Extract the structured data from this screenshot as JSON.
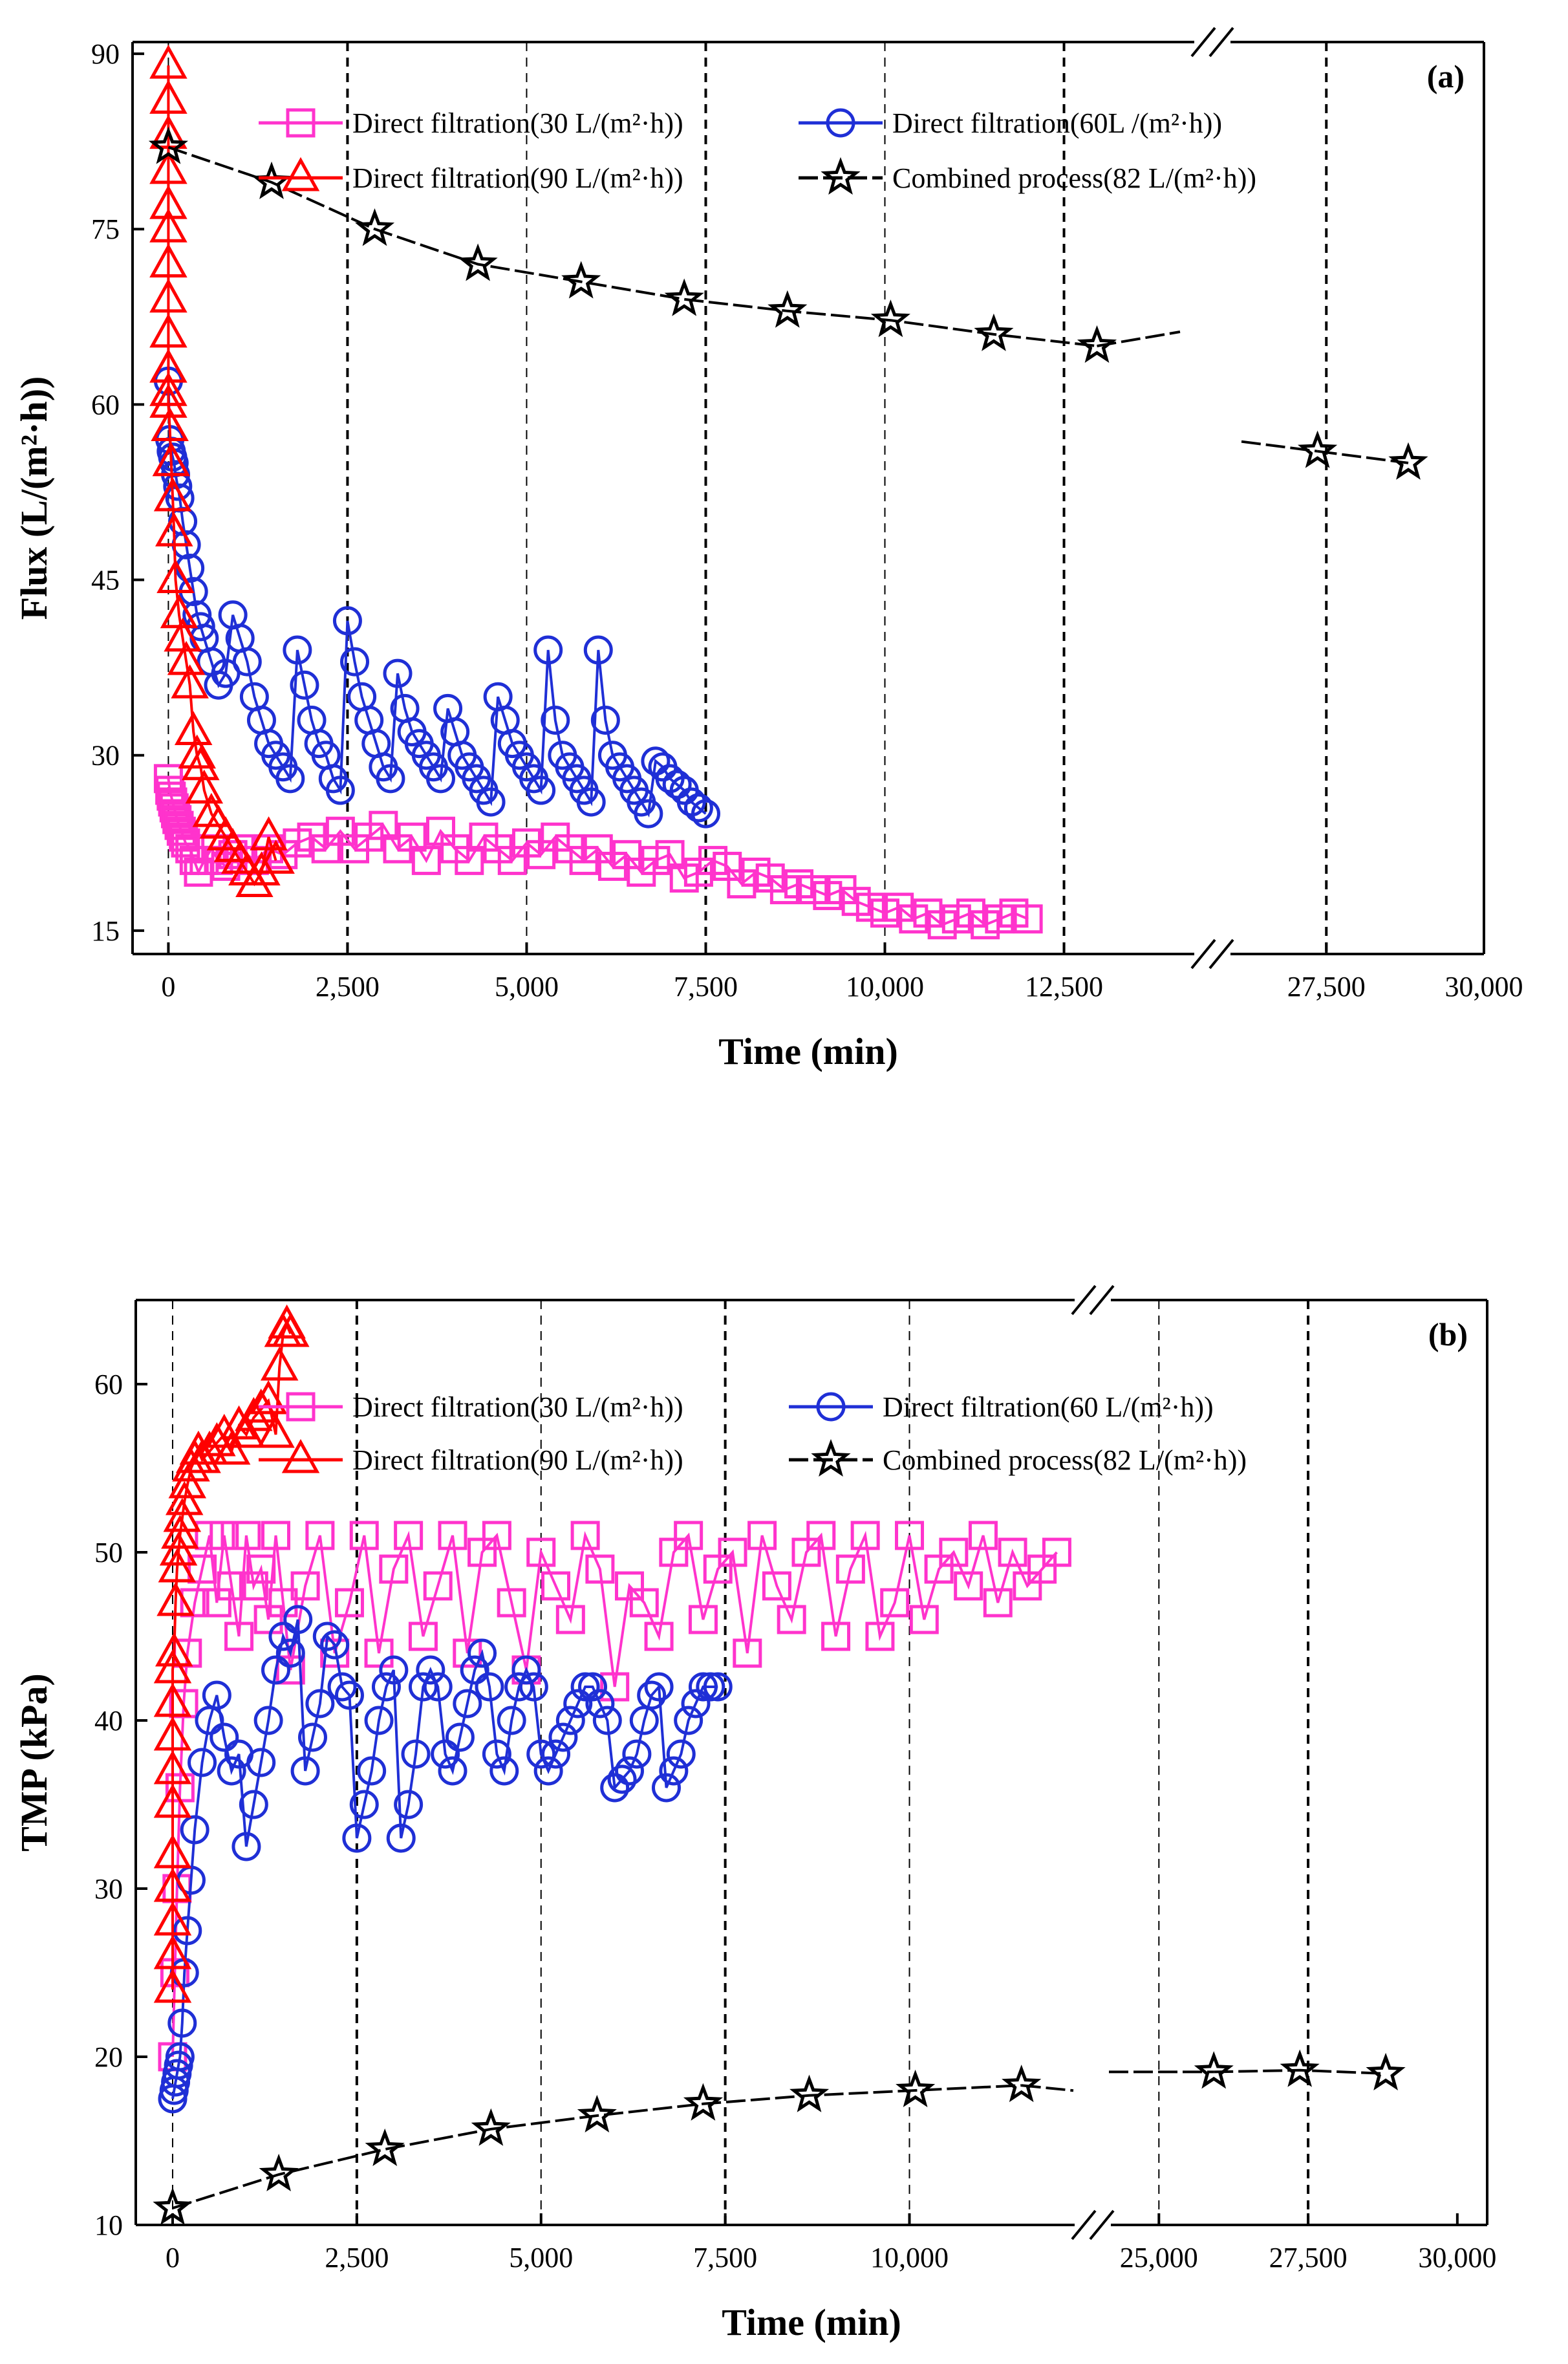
{
  "chart_data": [
    {
      "type": "scatter",
      "panel_label": "(a)",
      "xlabel": "Time (min)",
      "ylabel": "Flux (L/(m²·h))",
      "ylim": [
        13,
        91
      ],
      "yticks": [
        "15",
        "30",
        "45",
        "60",
        "75",
        "90"
      ],
      "ytick_values": [
        15,
        30,
        45,
        60,
        75,
        90
      ],
      "x_segments": [
        {
          "range": [
            -500,
            14300
          ],
          "ticks": [
            "0",
            "2,500",
            "5,000",
            "7,500",
            "10,000",
            "12,500"
          ],
          "tick_values": [
            0,
            2500,
            5000,
            7500,
            10000,
            12500
          ]
        },
        {
          "range": [
            26000,
            30000
          ],
          "ticks": [
            "27,500",
            "30,000"
          ],
          "tick_values": [
            27500,
            30000
          ]
        }
      ],
      "vlines": [
        0,
        2500,
        5000,
        7500,
        10000,
        12500,
        27500
      ],
      "legend": [
        {
          "name": "Direct filtration(30 L/(m²·h))",
          "marker": "square",
          "color": "#ff33cc"
        },
        {
          "name": "Direct filtration(60L /(m²·h))",
          "marker": "circle",
          "color": "#1f2fd6"
        },
        {
          "name": "Direct filtration(90 L/(m²·h))",
          "marker": "triangle",
          "color": "#ff0000"
        },
        {
          "name": "Combined process(82 L/(m²·h))",
          "marker": "star",
          "color": "#000000"
        }
      ],
      "series": [
        {
          "name": "Direct filtration(30 L/(m²·h))",
          "x": [
            0,
            20,
            40,
            60,
            80,
            100,
            120,
            150,
            180,
            210,
            240,
            300,
            360,
            420,
            500,
            600,
            700,
            800,
            900,
            1000,
            1200,
            1400,
            1600,
            1800,
            2000,
            2200,
            2400,
            2600,
            2800,
            3000,
            3200,
            3400,
            3600,
            3800,
            4000,
            4200,
            4400,
            4600,
            4800,
            5000,
            5200,
            5400,
            5600,
            5800,
            6000,
            6200,
            6400,
            6600,
            6800,
            7000,
            7200,
            7400,
            7600,
            7800,
            8000,
            8200,
            8400,
            8600,
            8800,
            9000,
            9200,
            9400,
            9600,
            9800,
            10000,
            10200,
            10400,
            10600,
            10800,
            11000,
            11200,
            11400,
            11600,
            11800,
            12000
          ],
          "y": [
            28,
            27,
            26.5,
            26,
            25.5,
            25,
            24.5,
            24,
            23.5,
            23,
            22.5,
            22,
            21,
            20,
            21,
            22,
            21,
            20.5,
            21.5,
            22,
            21,
            22,
            21.5,
            22.5,
            23,
            22,
            23.5,
            22,
            23,
            24,
            22,
            23,
            21,
            23.5,
            22,
            21,
            23,
            22,
            21,
            22.5,
            21.5,
            23,
            22,
            21,
            22,
            20.5,
            21.5,
            20,
            21,
            21.5,
            19.5,
            20,
            21,
            20.5,
            19,
            20,
            19.5,
            18.5,
            19,
            18.5,
            18,
            18.5,
            17.5,
            17,
            16.5,
            17,
            16,
            16.5,
            15.5,
            16,
            16.5,
            15.5,
            16,
            16.5,
            16
          ]
        },
        {
          "name": "Direct filtration(60L /(m²·h))",
          "x": [
            0,
            20,
            40,
            60,
            80,
            100,
            130,
            160,
            200,
            250,
            300,
            350,
            400,
            450,
            500,
            600,
            700,
            800,
            900,
            1000,
            1100,
            1200,
            1300,
            1400,
            1500,
            1600,
            1700,
            1800,
            1900,
            2000,
            2100,
            2200,
            2300,
            2400,
            2500,
            2600,
            2700,
            2800,
            2900,
            3000,
            3100,
            3200,
            3300,
            3400,
            3500,
            3600,
            3700,
            3800,
            3900,
            4000,
            4100,
            4200,
            4300,
            4400,
            4500,
            4600,
            4700,
            4800,
            4900,
            5000,
            5100,
            5200,
            5300,
            5400,
            5500,
            5600,
            5700,
            5800,
            5900,
            6000,
            6100,
            6200,
            6300,
            6400,
            6500,
            6600,
            6700,
            6800,
            6900,
            7000,
            7100,
            7200,
            7300,
            7400,
            7500
          ],
          "y": [
            62,
            57,
            56,
            55.5,
            55,
            54,
            53,
            52,
            50,
            48,
            46,
            44,
            42,
            41,
            40,
            38,
            36,
            37,
            42,
            40,
            38,
            35,
            33,
            31,
            30,
            29,
            28,
            39,
            36,
            33,
            31,
            30,
            28,
            27,
            41.5,
            38,
            35,
            33,
            31,
            29,
            28,
            37,
            34,
            32,
            31,
            30,
            29,
            28,
            34,
            32,
            30,
            29,
            28,
            27,
            26,
            35,
            33,
            31,
            30,
            29,
            28,
            27,
            39,
            33,
            30,
            29,
            28,
            27,
            26,
            39,
            33,
            30,
            29,
            28,
            27,
            26,
            25,
            29.5,
            29,
            28,
            27.5,
            27,
            26,
            25.5,
            25
          ]
        },
        {
          "name": "Direct filtration(90 L/(m²·h))",
          "x": [
            0,
            0,
            0,
            0,
            0,
            0,
            0,
            0,
            0,
            0,
            0,
            0,
            20,
            40,
            60,
            80,
            100,
            150,
            200,
            250,
            300,
            350,
            400,
            450,
            500,
            600,
            700,
            800,
            900,
            1000,
            1100,
            1200,
            1300,
            1400,
            1500
          ],
          "y": [
            89,
            86,
            83,
            80,
            77,
            75,
            72,
            69,
            66,
            63,
            61,
            60,
            58,
            55,
            52,
            49,
            45,
            42,
            40,
            38,
            36,
            32,
            30,
            29,
            27,
            25,
            24,
            23,
            22,
            21,
            20,
            19,
            20,
            23,
            21
          ]
        },
        {
          "name": "Combined process(82 L/(m²·h))",
          "x": [
            0,
            1440,
            2880,
            4320,
            5760,
            7200,
            8640,
            10080,
            11520,
            12960,
            27360,
            28800
          ],
          "y": [
            82,
            79,
            75,
            72,
            70.5,
            69,
            68,
            67.2,
            66,
            65,
            56,
            55
          ]
        }
      ]
    },
    {
      "type": "scatter",
      "panel_label": "(b)",
      "xlabel": "Time (min)",
      "ylabel": "TMP (kPa)",
      "ylim": [
        10,
        65
      ],
      "yticks": [
        "10",
        "20",
        "30",
        "40",
        "50",
        "60"
      ],
      "ytick_values": [
        10,
        20,
        30,
        40,
        50,
        60
      ],
      "x_segments": [
        {
          "range": [
            -500,
            12400
          ],
          "ticks": [
            "0",
            "2,500",
            "5,000",
            "7,500",
            "10,000"
          ],
          "tick_values": [
            0,
            2500,
            5000,
            7500,
            10000
          ]
        },
        {
          "range": [
            24000,
            30500
          ],
          "ticks": [
            "25,000",
            "27,500",
            "30,000"
          ],
          "tick_values": [
            25000,
            27500,
            30000
          ]
        }
      ],
      "vlines": [
        0,
        2500,
        5000,
        7500,
        10000,
        25000,
        27500
      ],
      "legend": [
        {
          "name": "Direct filtration(30 L/(m²·h))",
          "marker": "square",
          "color": "#ff33cc"
        },
        {
          "name": "Direct filtration(60 L/(m²·h))",
          "marker": "circle",
          "color": "#1f2fd6"
        },
        {
          "name": "Direct filtration(90 L/(m²·h))",
          "marker": "triangle",
          "color": "#ff0000"
        },
        {
          "name": "Combined process(82 L/(m²·h))",
          "marker": "star",
          "color": "#000000"
        }
      ],
      "series": [
        {
          "name": "Direct filtration(30 L/(m²·h))",
          "x": [
            0,
            30,
            60,
            100,
            150,
            200,
            300,
            400,
            500,
            600,
            700,
            800,
            900,
            1000,
            1100,
            1200,
            1300,
            1400,
            1500,
            1600,
            1800,
            2000,
            2200,
            2400,
            2600,
            2800,
            3000,
            3200,
            3400,
            3600,
            3800,
            4000,
            4200,
            4400,
            4600,
            4800,
            5000,
            5200,
            5400,
            5600,
            5800,
            6000,
            6200,
            6400,
            6600,
            6800,
            7000,
            7200,
            7400,
            7600,
            7800,
            8000,
            8200,
            8400,
            8600,
            8800,
            9000,
            9200,
            9400,
            9600,
            9800,
            10000,
            10200,
            10400,
            10600,
            10800,
            11000,
            11200,
            11400,
            11600,
            11800,
            12000
          ],
          "y": [
            20,
            25,
            30,
            36,
            41,
            44,
            47,
            49,
            51,
            47,
            51,
            48,
            45,
            51,
            48,
            49,
            46,
            51,
            47,
            43,
            48,
            51,
            44,
            47,
            51,
            44,
            49,
            51,
            45,
            48,
            51,
            44,
            50,
            51,
            47,
            43,
            50,
            48,
            46,
            51,
            49,
            42,
            48,
            47,
            45,
            50,
            51,
            46,
            49,
            50,
            44,
            51,
            48,
            46,
            50,
            51,
            45,
            49,
            51,
            45,
            47,
            51,
            46,
            49,
            50,
            48,
            51,
            47,
            50,
            48,
            49,
            50
          ]
        },
        {
          "name": "Direct filtration(60 L/(m²·h))",
          "x": [
            0,
            20,
            40,
            60,
            80,
            100,
            130,
            160,
            200,
            250,
            300,
            400,
            500,
            600,
            700,
            800,
            900,
            1000,
            1100,
            1200,
            1300,
            1400,
            1500,
            1600,
            1700,
            1800,
            1900,
            2000,
            2100,
            2200,
            2300,
            2400,
            2500,
            2600,
            2700,
            2800,
            2900,
            3000,
            3100,
            3200,
            3300,
            3400,
            3500,
            3600,
            3700,
            3800,
            3900,
            4000,
            4100,
            4200,
            4300,
            4400,
            4500,
            4600,
            4700,
            4800,
            4900,
            5000,
            5100,
            5200,
            5300,
            5400,
            5500,
            5600,
            5700,
            5800,
            5900,
            6000,
            6100,
            6200,
            6300,
            6400,
            6500,
            6600,
            6700,
            6800,
            6900,
            7000,
            7100,
            7200,
            7300,
            7400
          ],
          "y": [
            17.5,
            18,
            18.5,
            19,
            19.5,
            20,
            22,
            25,
            27.5,
            30.5,
            33.5,
            37.5,
            40,
            41.5,
            39,
            37,
            38,
            32.5,
            35,
            37.5,
            40,
            43,
            45,
            44,
            46,
            37,
            39,
            41,
            45,
            44.5,
            42,
            41.5,
            33,
            35,
            37,
            40,
            42,
            43,
            33,
            35,
            38,
            42,
            43,
            42,
            38,
            37,
            39,
            41,
            43,
            44,
            42,
            38,
            37,
            40,
            42,
            43,
            42,
            38,
            37,
            38,
            39,
            40,
            41,
            42,
            42,
            41,
            40,
            36,
            36.5,
            37,
            38,
            40,
            41.5,
            42,
            36,
            37,
            38,
            40,
            41,
            42,
            42,
            42
          ]
        },
        {
          "name": "Direct filtration(90 L/(m²·h))",
          "x": [
            0,
            0,
            0,
            0,
            0,
            0,
            0,
            0,
            0,
            0,
            20,
            40,
            60,
            80,
            100,
            130,
            160,
            200,
            250,
            300,
            350,
            400,
            500,
            600,
            700,
            800,
            900,
            1000,
            1100,
            1200,
            1300,
            1400,
            1450,
            1500,
            1550,
            1600
          ],
          "y": [
            24,
            26,
            28,
            30,
            32,
            35,
            37,
            39,
            41,
            43,
            44,
            47,
            49,
            50,
            51,
            52,
            53,
            54,
            55,
            55.5,
            56,
            55.5,
            56,
            56.5,
            57,
            56,
            57.5,
            57,
            58,
            58.5,
            59,
            57,
            61,
            63,
            63.5,
            63
          ]
        },
        {
          "name": "Combined process(82 L/(m²·h))",
          "x": [
            0,
            1440,
            2880,
            4320,
            5760,
            7200,
            8640,
            10080,
            11520,
            25920,
            27360,
            28800
          ],
          "y": [
            11,
            13,
            14.5,
            15.7,
            16.5,
            17.2,
            17.7,
            18,
            18.3,
            19.1,
            19.2,
            19
          ]
        }
      ]
    }
  ]
}
